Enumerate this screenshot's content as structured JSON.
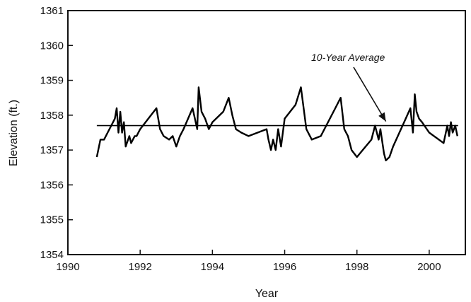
{
  "chart_data": {
    "type": "line",
    "title": "",
    "xlabel": "Year",
    "ylabel": "Elevation (ft.)",
    "xlim": [
      1990,
      2001
    ],
    "ylim": [
      1354,
      1361
    ],
    "xticks": [
      1990,
      1992,
      1994,
      1996,
      1998,
      2000
    ],
    "yticks": [
      1354,
      1355,
      1356,
      1357,
      1358,
      1359,
      1360,
      1361
    ],
    "grid": false,
    "legend": "none",
    "annotation": {
      "text": "10-Year Average",
      "points_to": [
        1998.8,
        1357.7
      ]
    },
    "series": [
      {
        "style": "reference-line",
        "color": "#000000",
        "x": [
          1990.8,
          2000.8
        ],
        "y": [
          1357.7,
          1357.7
        ]
      },
      {
        "style": "line",
        "color": "#000000",
        "x": [
          1990.8,
          1990.9,
          1991.0,
          1991.1,
          1991.3,
          1991.35,
          1991.4,
          1991.45,
          1991.5,
          1991.55,
          1991.6,
          1991.7,
          1991.75,
          1991.85,
          1991.9,
          1992.0,
          1992.3,
          1992.45,
          1992.55,
          1992.65,
          1992.8,
          1992.9,
          1993.0,
          1993.1,
          1993.2,
          1993.45,
          1993.58,
          1993.62,
          1993.7,
          1993.8,
          1993.9,
          1994.0,
          1994.3,
          1994.45,
          1994.55,
          1994.65,
          1994.8,
          1995.0,
          1995.5,
          1995.55,
          1995.62,
          1995.68,
          1995.75,
          1995.82,
          1995.9,
          1996.0,
          1996.3,
          1996.45,
          1996.6,
          1996.75,
          1997.0,
          1997.4,
          1997.55,
          1997.65,
          1997.75,
          1997.85,
          1998.0,
          1998.4,
          1998.5,
          1998.6,
          1998.65,
          1998.75,
          1998.8,
          1998.9,
          1999.0,
          1999.35,
          1999.48,
          1999.55,
          1999.6,
          1999.65,
          1999.72,
          1999.8,
          2000.0,
          2000.4,
          2000.5,
          2000.55,
          2000.6,
          2000.65,
          2000.72,
          2000.78
        ],
        "y": [
          1356.8,
          1357.3,
          1357.3,
          1357.5,
          1357.9,
          1358.2,
          1357.5,
          1358.1,
          1357.5,
          1357.8,
          1357.1,
          1357.4,
          1357.2,
          1357.4,
          1357.4,
          1357.6,
          1358.0,
          1358.2,
          1357.6,
          1357.4,
          1357.3,
          1357.4,
          1357.1,
          1357.4,
          1357.6,
          1358.2,
          1357.6,
          1358.8,
          1358.1,
          1357.9,
          1357.6,
          1357.8,
          1358.1,
          1358.5,
          1358.0,
          1357.6,
          1357.5,
          1357.4,
          1357.6,
          1357.3,
          1357.0,
          1357.3,
          1357.0,
          1357.6,
          1357.1,
          1357.9,
          1358.3,
          1358.8,
          1357.6,
          1357.3,
          1357.4,
          1358.2,
          1358.5,
          1357.6,
          1357.4,
          1357.0,
          1356.8,
          1357.3,
          1357.7,
          1357.3,
          1357.6,
          1356.9,
          1356.7,
          1356.8,
          1357.1,
          1357.9,
          1358.2,
          1357.5,
          1358.6,
          1358.1,
          1357.9,
          1357.8,
          1357.5,
          1357.2,
          1357.7,
          1357.4,
          1357.8,
          1357.5,
          1357.7,
          1357.4
        ]
      }
    ]
  }
}
